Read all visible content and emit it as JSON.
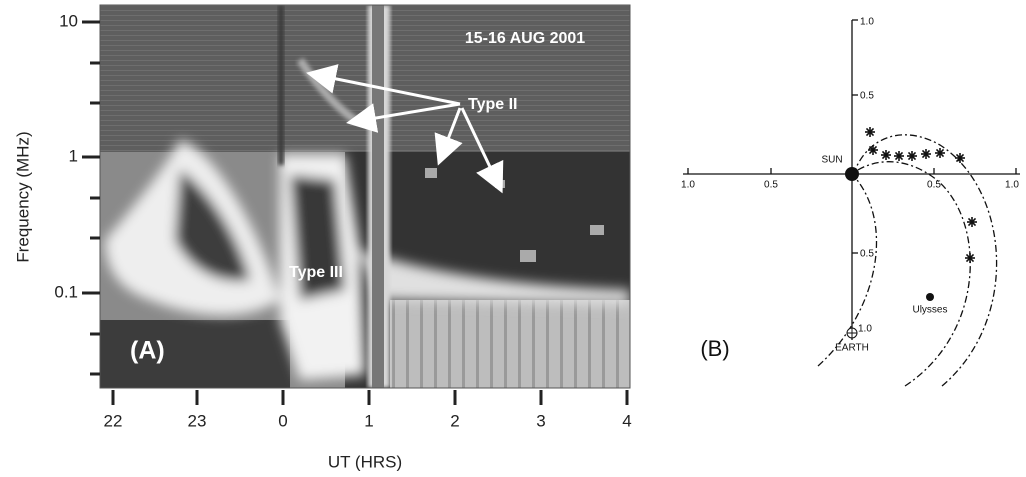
{
  "panel_a": {
    "label": "(A)",
    "date": "15-16 AUG 2001",
    "annotations": [
      "Type II",
      "Type III"
    ],
    "x_axis": {
      "label": "UT (HRS)",
      "tick_labels": [
        "22",
        "23",
        "0",
        "1",
        "2",
        "3",
        "4"
      ]
    },
    "y_axis": {
      "label": "Frequency (MHz)",
      "tick_labels": [
        "10",
        "1",
        "0.1"
      ]
    }
  },
  "panel_b": {
    "label": "(B)",
    "bodies": [
      "SUN",
      "EARTH",
      "Ulysses"
    ],
    "x_tick_labels": [
      "1.0",
      "0.5",
      "0.5",
      "1.0"
    ],
    "y_tick_labels": [
      "1.0",
      "0.5",
      "0.5",
      "1.0"
    ]
  }
}
